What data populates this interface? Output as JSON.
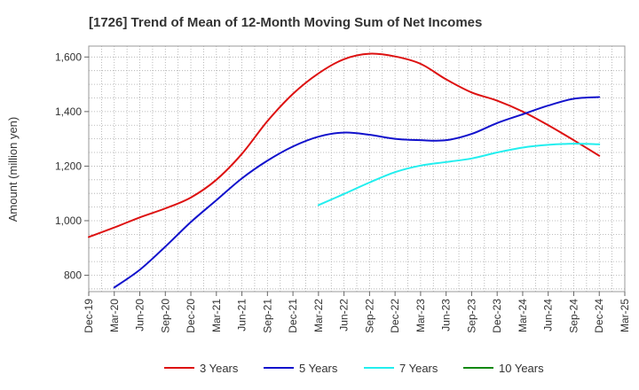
{
  "chart_data": {
    "type": "line",
    "title": "[1726]  Trend of Mean of 12-Month Moving Sum of Net Incomes",
    "ylabel": "Amount (million yen)",
    "xlabel": "",
    "ylim": [
      740,
      1640
    ],
    "yticks": [
      800,
      1000,
      1200,
      1400,
      1600
    ],
    "ytick_labels": [
      "800",
      "1,000",
      "1,200",
      "1,400",
      "1,600"
    ],
    "x_categories": [
      "Dec-19",
      "Mar-20",
      "Jun-20",
      "Sep-20",
      "Dec-20",
      "Mar-21",
      "Jun-21",
      "Sep-21",
      "Dec-21",
      "Mar-22",
      "Jun-22",
      "Sep-22",
      "Dec-22",
      "Mar-23",
      "Jun-23",
      "Sep-23",
      "Dec-23",
      "Mar-24",
      "Jun-24",
      "Sep-24",
      "Dec-24",
      "Mar-25"
    ],
    "grid": true,
    "legend_position": "bottom",
    "series": [
      {
        "name": "3 Years",
        "color": "#dd1111",
        "points": [
          {
            "x": "Dec-19",
            "y": 940
          },
          {
            "x": "Mar-20",
            "y": 975
          },
          {
            "x": "Jun-20",
            "y": 1012
          },
          {
            "x": "Sep-20",
            "y": 1045
          },
          {
            "x": "Dec-20",
            "y": 1085
          },
          {
            "x": "Mar-21",
            "y": 1150
          },
          {
            "x": "Jun-21",
            "y": 1245
          },
          {
            "x": "Sep-21",
            "y": 1365
          },
          {
            "x": "Dec-21",
            "y": 1465
          },
          {
            "x": "Mar-22",
            "y": 1540
          },
          {
            "x": "Jun-22",
            "y": 1592
          },
          {
            "x": "Sep-22",
            "y": 1612
          },
          {
            "x": "Dec-22",
            "y": 1602
          },
          {
            "x": "Mar-23",
            "y": 1575
          },
          {
            "x": "Jun-23",
            "y": 1518
          },
          {
            "x": "Sep-23",
            "y": 1470
          },
          {
            "x": "Dec-23",
            "y": 1440
          },
          {
            "x": "Mar-24",
            "y": 1400
          },
          {
            "x": "Jun-24",
            "y": 1350
          },
          {
            "x": "Sep-24",
            "y": 1295
          },
          {
            "x": "Dec-24",
            "y": 1238
          }
        ]
      },
      {
        "name": "5 Years",
        "color": "#1111cc",
        "points": [
          {
            "x": "Mar-20",
            "y": 755
          },
          {
            "x": "Jun-20",
            "y": 820
          },
          {
            "x": "Sep-20",
            "y": 905
          },
          {
            "x": "Dec-20",
            "y": 995
          },
          {
            "x": "Mar-21",
            "y": 1075
          },
          {
            "x": "Jun-21",
            "y": 1155
          },
          {
            "x": "Sep-21",
            "y": 1220
          },
          {
            "x": "Dec-21",
            "y": 1272
          },
          {
            "x": "Mar-22",
            "y": 1308
          },
          {
            "x": "Jun-22",
            "y": 1323
          },
          {
            "x": "Sep-22",
            "y": 1315
          },
          {
            "x": "Dec-22",
            "y": 1300
          },
          {
            "x": "Mar-23",
            "y": 1295
          },
          {
            "x": "Jun-23",
            "y": 1295
          },
          {
            "x": "Sep-23",
            "y": 1318
          },
          {
            "x": "Dec-23",
            "y": 1358
          },
          {
            "x": "Mar-24",
            "y": 1390
          },
          {
            "x": "Jun-24",
            "y": 1422
          },
          {
            "x": "Sep-24",
            "y": 1447
          },
          {
            "x": "Dec-24",
            "y": 1453
          }
        ]
      },
      {
        "name": "7 Years",
        "color": "#22eeee",
        "points": [
          {
            "x": "Mar-22",
            "y": 1057
          },
          {
            "x": "Jun-22",
            "y": 1098
          },
          {
            "x": "Sep-22",
            "y": 1140
          },
          {
            "x": "Dec-22",
            "y": 1178
          },
          {
            "x": "Mar-23",
            "y": 1202
          },
          {
            "x": "Jun-23",
            "y": 1215
          },
          {
            "x": "Sep-23",
            "y": 1228
          },
          {
            "x": "Dec-23",
            "y": 1250
          },
          {
            "x": "Mar-24",
            "y": 1268
          },
          {
            "x": "Jun-24",
            "y": 1278
          },
          {
            "x": "Sep-24",
            "y": 1282
          },
          {
            "x": "Dec-24",
            "y": 1280
          }
        ]
      },
      {
        "name": "10 Years",
        "color": "#118811",
        "points": []
      }
    ]
  }
}
